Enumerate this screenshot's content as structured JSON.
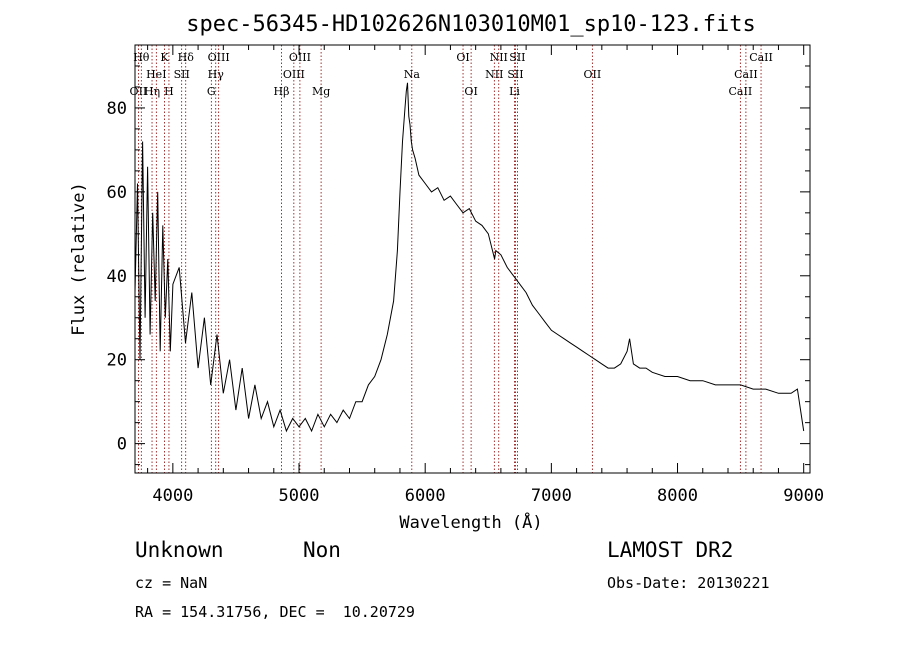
{
  "chart_data": {
    "type": "line",
    "title": "spec-56345-HD102626N103010M01_sp10-123.fits",
    "xlabel": "Wavelength (Å)",
    "ylabel": "Flux (relative)",
    "xlim": [
      3700,
      9050
    ],
    "ylim": [
      -7,
      95
    ],
    "xticks": [
      4000,
      5000,
      6000,
      7000,
      8000,
      9000
    ],
    "yticks": [
      0,
      20,
      40,
      60,
      80
    ],
    "grid": false,
    "legend": "none",
    "series": [
      {
        "x": [
          3700,
          3720,
          3740,
          3760,
          3780,
          3800,
          3820,
          3840,
          3860,
          3880,
          3900,
          3920,
          3940,
          3960,
          3980,
          4000,
          4050,
          4100,
          4150,
          4200,
          4250,
          4300,
          4350,
          4400,
          4450,
          4500,
          4550,
          4600,
          4650,
          4700,
          4750,
          4800,
          4850,
          4900,
          4950,
          5000,
          5050,
          5100,
          5150,
          5200,
          5250,
          5300,
          5350,
          5400,
          5450,
          5500,
          5550,
          5600,
          5650,
          5700,
          5750,
          5780,
          5800,
          5820,
          5840,
          5850,
          5860,
          5870,
          5880,
          5890,
          5900,
          5920,
          5950,
          6000,
          6050,
          6100,
          6150,
          6200,
          6250,
          6300,
          6350,
          6400,
          6450,
          6500,
          6550,
          6560,
          6600,
          6650,
          6700,
          6750,
          6800,
          6850,
          6900,
          6950,
          7000,
          7050,
          7100,
          7150,
          7200,
          7250,
          7300,
          7350,
          7400,
          7450,
          7500,
          7550,
          7600,
          7620,
          7650,
          7700,
          7750,
          7800,
          7900,
          8000,
          8100,
          8200,
          8300,
          8400,
          8500,
          8600,
          8700,
          8800,
          8900,
          8950,
          9000
        ],
        "y": [
          36,
          62,
          20,
          72,
          30,
          66,
          26,
          55,
          34,
          60,
          22,
          52,
          30,
          44,
          22,
          38,
          42,
          24,
          36,
          18,
          30,
          14,
          26,
          12,
          20,
          8,
          18,
          6,
          14,
          6,
          10,
          4,
          8,
          3,
          6,
          4,
          6,
          3,
          7,
          4,
          7,
          5,
          8,
          6,
          10,
          10,
          14,
          16,
          20,
          26,
          34,
          46,
          60,
          72,
          80,
          84,
          86,
          78,
          76,
          72,
          70,
          68,
          64,
          62,
          60,
          61,
          58,
          59,
          57,
          55,
          56,
          53,
          52,
          50,
          44,
          46,
          45,
          42,
          40,
          38,
          36,
          33,
          31,
          29,
          27,
          26,
          25,
          24,
          23,
          22,
          21,
          20,
          19,
          18,
          18,
          19,
          22,
          25,
          19,
          18,
          18,
          17,
          16,
          16,
          15,
          15,
          14,
          14,
          14,
          13,
          13,
          12,
          12,
          13,
          3
        ]
      }
    ],
    "lines": [
      {
        "name": "OII",
        "x": 3727,
        "row": 3
      },
      {
        "name": "Hθ",
        "x": 3750,
        "row": 1
      },
      {
        "name": "Hη",
        "x": 3835,
        "row": 3
      },
      {
        "name": "HeI",
        "x": 3869,
        "row": 2
      },
      {
        "name": "K",
        "x": 3934,
        "row": 1
      },
      {
        "name": "H",
        "x": 3969,
        "row": 3
      },
      {
        "name": "SII",
        "x": 4070,
        "row": 2
      },
      {
        "name": "Hδ",
        "x": 4102,
        "row": 1
      },
      {
        "name": "G",
        "x": 4305,
        "row": 3
      },
      {
        "name": "Hγ",
        "x": 4340,
        "row": 2
      },
      {
        "name": "OIII",
        "x": 4363,
        "row": 1
      },
      {
        "name": "Hβ",
        "x": 4861,
        "row": 3
      },
      {
        "name": "OIII",
        "x": 4959,
        "row": 2
      },
      {
        "name": "OIII",
        "x": 5007,
        "row": 1
      },
      {
        "name": "Mg",
        "x": 5175,
        "row": 3
      },
      {
        "name": "Na",
        "x": 5894,
        "row": 2
      },
      {
        "name": "OI",
        "x": 6300,
        "row": 1
      },
      {
        "name": "OI",
        "x": 6364,
        "row": 3
      },
      {
        "name": "NII",
        "x": 6548,
        "row": 2
      },
      {
        "name": "NII",
        "x": 6583,
        "row": 1
      },
      {
        "name": "Li",
        "x": 6708,
        "row": 3
      },
      {
        "name": "SII",
        "x": 6716,
        "row": 2
      },
      {
        "name": "SII",
        "x": 6731,
        "row": 1
      },
      {
        "name": "OII",
        "x": 7325,
        "row": 2
      },
      {
        "name": "CaII",
        "x": 8498,
        "row": 3
      },
      {
        "name": "CaII",
        "x": 8542,
        "row": 2
      },
      {
        "name": "CaII",
        "x": 8662,
        "row": 1
      }
    ]
  },
  "info": {
    "class": "Unknown",
    "subclass": "Non",
    "survey": "LAMOST DR2",
    "cz": "cz = NaN",
    "obs_date": "Obs-Date: 20130221",
    "coords": "RA = 154.31756, DEC =  10.20729"
  }
}
